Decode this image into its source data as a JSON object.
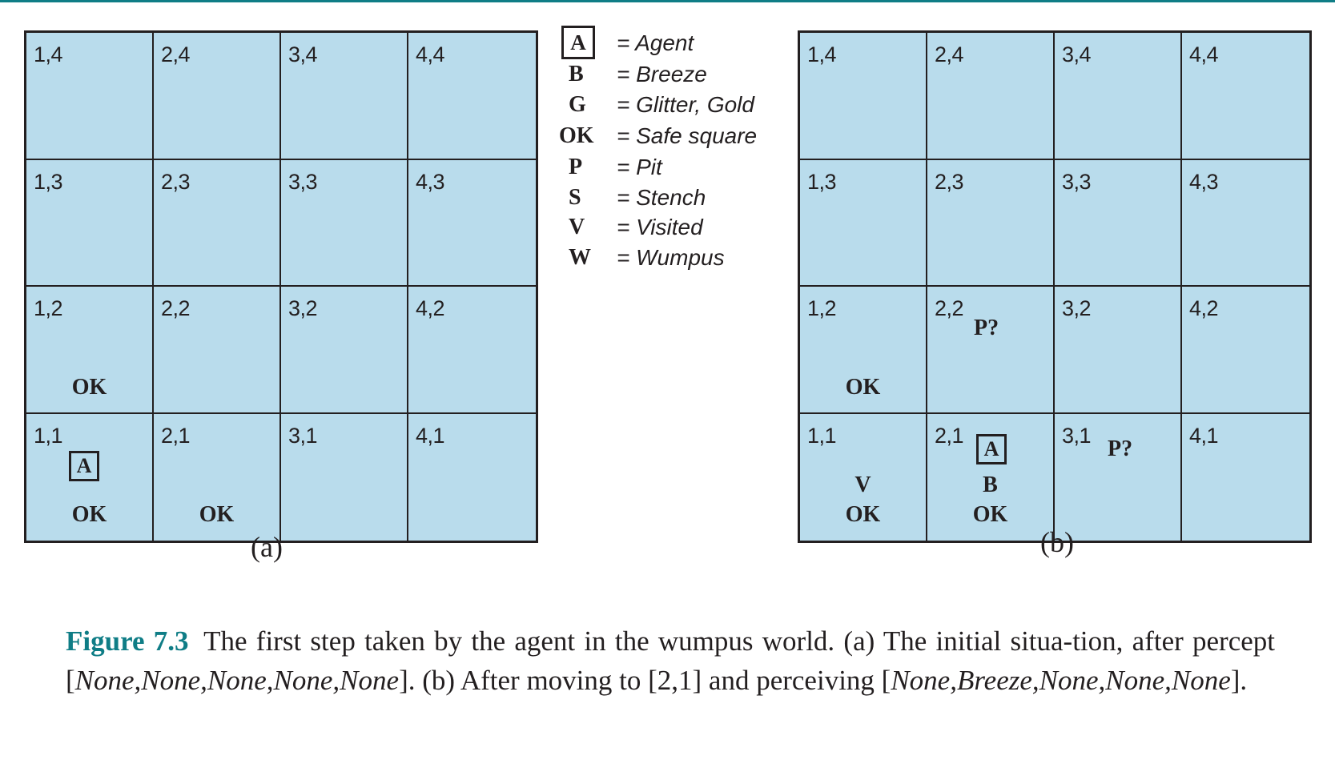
{
  "grid_a": {
    "cells": [
      {
        "coord": "1,4"
      },
      {
        "coord": "2,4"
      },
      {
        "coord": "3,4"
      },
      {
        "coord": "4,4"
      },
      {
        "coord": "1,3"
      },
      {
        "coord": "2,3"
      },
      {
        "coord": "3,3"
      },
      {
        "coord": "4,3"
      },
      {
        "coord": "1,2",
        "marks": [
          "OK"
        ]
      },
      {
        "coord": "2,2"
      },
      {
        "coord": "3,2"
      },
      {
        "coord": "4,2"
      },
      {
        "coord": "1,1",
        "agent": "A",
        "marks": [
          "OK"
        ]
      },
      {
        "coord": "2,1",
        "marks": [
          "OK"
        ]
      },
      {
        "coord": "3,1"
      },
      {
        "coord": "4,1"
      }
    ],
    "sublabel": "(a)"
  },
  "grid_b": {
    "cells": [
      {
        "coord": "1,4"
      },
      {
        "coord": "2,4"
      },
      {
        "coord": "3,4"
      },
      {
        "coord": "4,4"
      },
      {
        "coord": "1,3"
      },
      {
        "coord": "2,3"
      },
      {
        "coord": "3,3"
      },
      {
        "coord": "4,3"
      },
      {
        "coord": "1,2",
        "marks": [
          "OK"
        ]
      },
      {
        "coord": "2,2",
        "marks": [
          "P?"
        ]
      },
      {
        "coord": "3,2"
      },
      {
        "coord": "4,2"
      },
      {
        "coord": "1,1",
        "marks": [
          "V",
          "OK"
        ]
      },
      {
        "coord": "2,1",
        "agent": "A",
        "marks": [
          "B",
          "OK"
        ]
      },
      {
        "coord": "3,1",
        "marks": [
          "P?"
        ]
      },
      {
        "coord": "4,1"
      }
    ],
    "sublabel": "(b)"
  },
  "legend": [
    {
      "symbol": "A",
      "boxed": true,
      "desc": "= Agent"
    },
    {
      "symbol": "B",
      "desc": "= Breeze"
    },
    {
      "symbol": "G",
      "desc": "= Glitter, Gold"
    },
    {
      "symbol": "OK",
      "desc": "= Safe square"
    },
    {
      "symbol": "P",
      "desc": "= Pit"
    },
    {
      "symbol": "S",
      "desc": "= Stench"
    },
    {
      "symbol": "V",
      "desc": "= Visited"
    },
    {
      "symbol": "W",
      "desc": "= Wumpus"
    }
  ],
  "caption": {
    "figure_label": "Figure 7.3",
    "text_1": "The first step taken by the agent in the wumpus world.  (a) The initial situa-tion, after percept [",
    "percept_1": "None,None,None,None,None",
    "text_2": "]. (b) After moving to [2,1] and perceiving [",
    "percept_2": "None,Breeze,None,None,None",
    "text_3": "]."
  },
  "colors": {
    "grid_fill": "#b9dcec",
    "accent": "#0f7d86",
    "ink": "#231f20"
  }
}
